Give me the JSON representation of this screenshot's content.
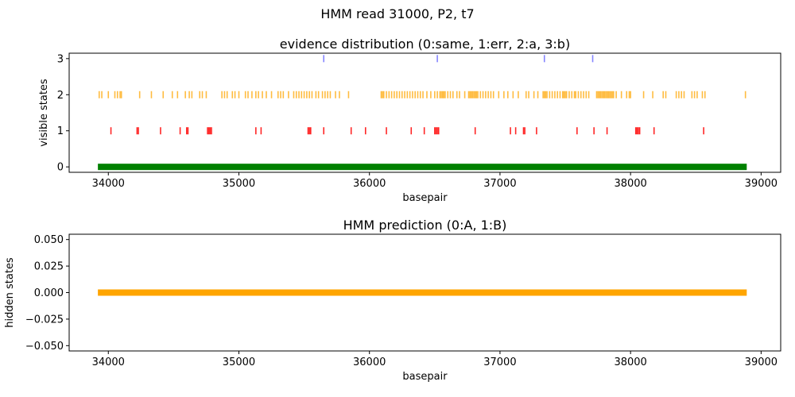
{
  "figure": {
    "suptitle": "HMM read 31000, P2, t7"
  },
  "chart_data": [
    {
      "type": "scatter",
      "title": "evidence distribution (0:same, 1:err, 2:a, 3:b)",
      "xlabel": "basepair",
      "ylabel": "visible states",
      "xlim": [
        33700,
        39150
      ],
      "ylim": [
        -0.15,
        3.15
      ],
      "xticks": [
        34000,
        35000,
        36000,
        37000,
        38000,
        39000
      ],
      "yticks": [
        0,
        1,
        2,
        3
      ],
      "marker": "vertical-line",
      "series": [
        {
          "state": 0,
          "color": "#008000",
          "style": "band",
          "x_range": [
            33920,
            38890
          ]
        },
        {
          "state": 1,
          "color": "#ff0000",
          "x": [
            34020,
            34220,
            34230,
            34400,
            34550,
            34600,
            34610,
            34760,
            34770,
            34780,
            34790,
            35130,
            35170,
            35530,
            35540,
            35550,
            35650,
            35860,
            35970,
            36130,
            36320,
            36420,
            36500,
            36510,
            36520,
            36530,
            36810,
            37080,
            37120,
            37180,
            37190,
            37280,
            37590,
            37720,
            37820,
            38040,
            38050,
            38060,
            38070,
            38180,
            38560
          ]
        },
        {
          "state": 2,
          "color": "#ffa500",
          "x": [
            33930,
            33950,
            34000,
            34050,
            34070,
            34090,
            34100,
            34240,
            34330,
            34420,
            34490,
            34530,
            34590,
            34620,
            34640,
            34700,
            34720,
            34750,
            34870,
            34890,
            34910,
            34950,
            34970,
            35000,
            35050,
            35070,
            35100,
            35130,
            35150,
            35180,
            35210,
            35250,
            35300,
            35320,
            35340,
            35380,
            35420,
            35440,
            35460,
            35480,
            35500,
            35520,
            35540,
            35560,
            35590,
            35610,
            35640,
            35660,
            35680,
            35700,
            35740,
            35770,
            35840,
            36090,
            36100,
            36110,
            36130,
            36150,
            36170,
            36190,
            36210,
            36230,
            36250,
            36270,
            36290,
            36310,
            36330,
            36350,
            36370,
            36390,
            36410,
            36440,
            36470,
            36500,
            36520,
            36540,
            36550,
            36560,
            36570,
            36580,
            36600,
            36620,
            36640,
            36670,
            36690,
            36730,
            36760,
            36770,
            36780,
            36790,
            36800,
            36810,
            36820,
            36830,
            36850,
            36870,
            36890,
            36910,
            36930,
            36950,
            36990,
            37030,
            37060,
            37100,
            37140,
            37200,
            37220,
            37260,
            37290,
            37330,
            37340,
            37350,
            37360,
            37380,
            37400,
            37420,
            37440,
            37460,
            37480,
            37490,
            37500,
            37510,
            37530,
            37550,
            37570,
            37580,
            37600,
            37620,
            37640,
            37660,
            37680,
            37740,
            37750,
            37760,
            37770,
            37780,
            37790,
            37800,
            37810,
            37820,
            37830,
            37840,
            37850,
            37860,
            37870,
            37890,
            37930,
            37970,
            37990,
            38000,
            38100,
            38170,
            38250,
            38270,
            38350,
            38370,
            38390,
            38410,
            38470,
            38490,
            38510,
            38550,
            38570,
            38880
          ]
        },
        {
          "state": 3,
          "color": "#7070ff",
          "x": [
            35650,
            36520,
            37340,
            37710
          ]
        }
      ]
    },
    {
      "type": "line",
      "title": "HMM prediction (0:A, 1:B)",
      "xlabel": "basepair",
      "ylabel": "hidden states",
      "xlim": [
        33700,
        39150
      ],
      "ylim": [
        -0.055,
        0.055
      ],
      "xticks": [
        34000,
        35000,
        36000,
        37000,
        38000,
        39000
      ],
      "yticks": [
        -0.05,
        -0.025,
        0,
        0.025,
        0.05
      ],
      "ytick_labels": [
        "−0.050",
        "−0.025",
        "0.000",
        "0.025",
        "0.050"
      ],
      "series": [
        {
          "color": "#ffa500",
          "x": [
            33920,
            38890
          ],
          "y": [
            0,
            0
          ]
        }
      ]
    }
  ]
}
